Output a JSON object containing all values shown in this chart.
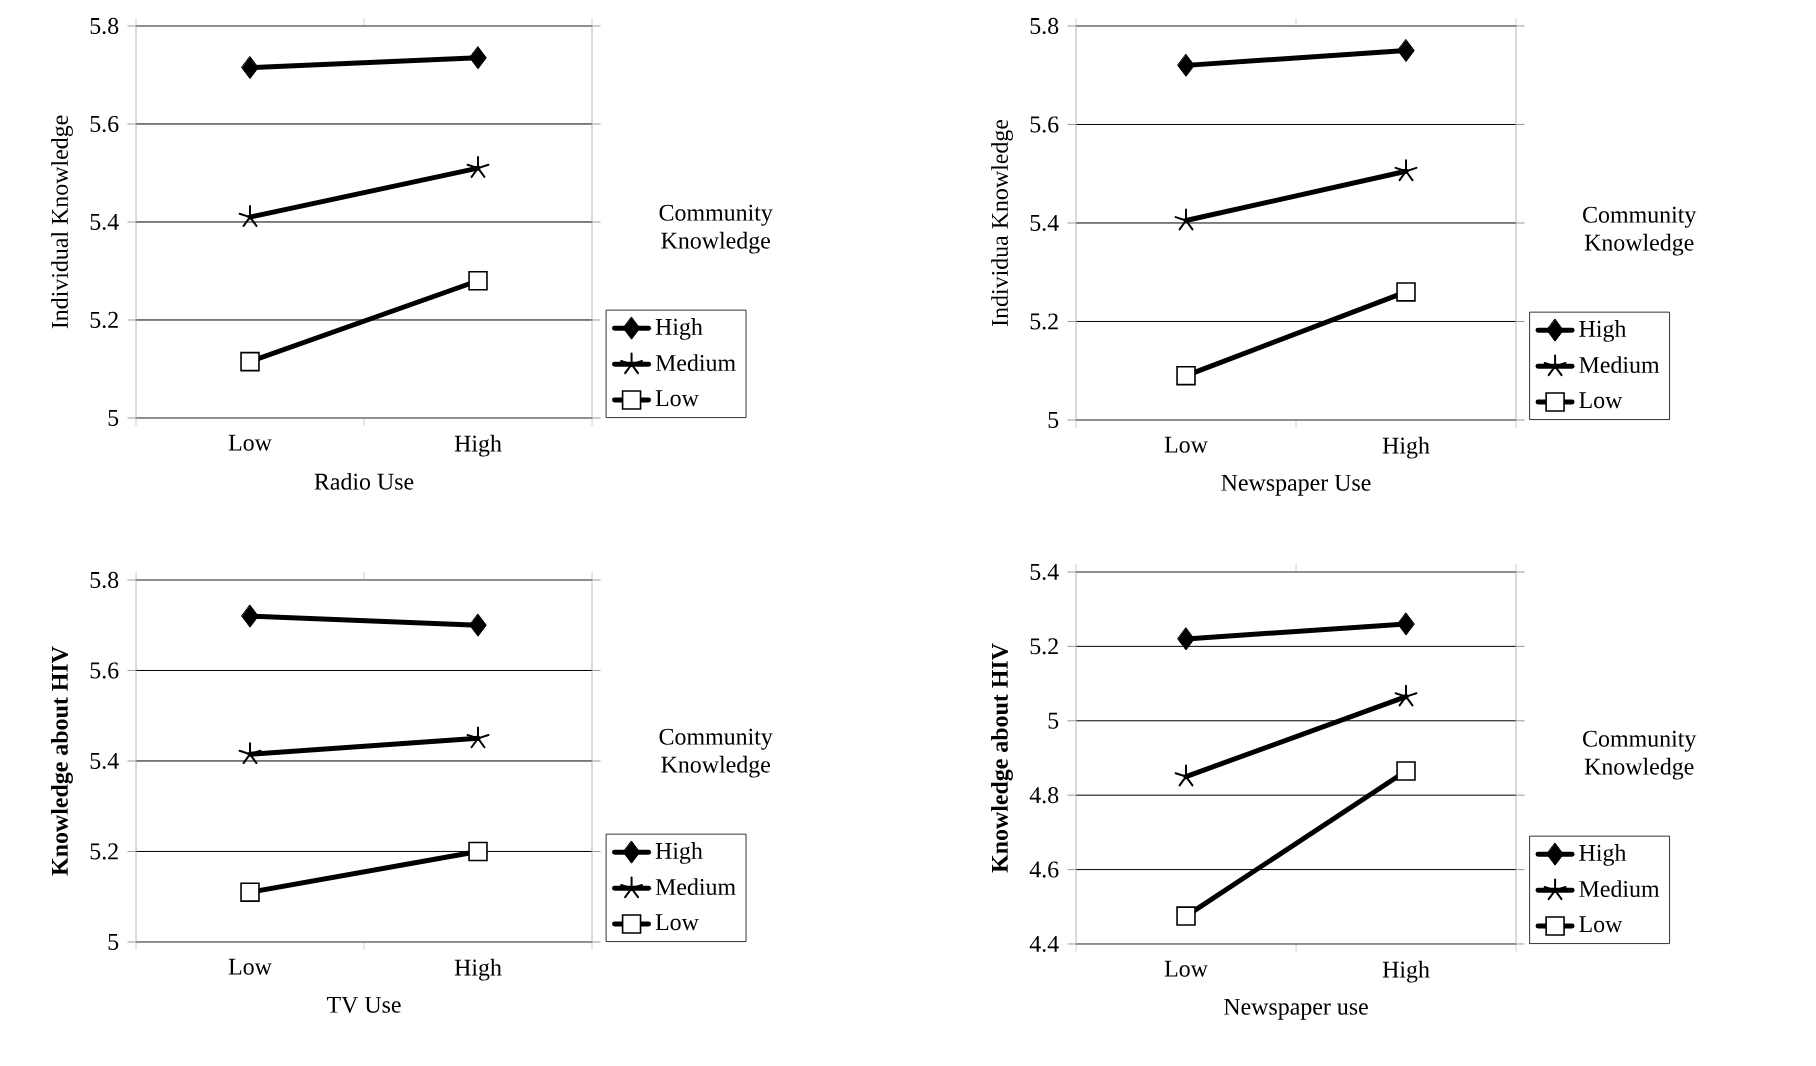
{
  "chart_data": [
    {
      "type": "line",
      "xlabel": "Radio Use",
      "ylabel": "Individual Knowledge",
      "legend_title": "Community Knowledge",
      "categories": [
        "Low",
        "High"
      ],
      "ylim": [
        5,
        5.8
      ],
      "yticks": [
        5,
        5.2,
        5.4,
        5.6,
        5.8
      ],
      "grid": "y",
      "legend": "right",
      "series": [
        {
          "name": "High",
          "color": "#000000",
          "marker": "diamond",
          "values": [
            5.715,
            5.735
          ]
        },
        {
          "name": "Medium",
          "color": "#000000",
          "marker": "cross",
          "values": [
            5.41,
            5.51
          ]
        },
        {
          "name": "Low",
          "color": "#000000",
          "marker": "square",
          "values": [
            5.115,
            5.28
          ]
        }
      ]
    },
    {
      "type": "line",
      "xlabel": "Newspaper Use",
      "ylabel": "Individua Knowledge",
      "legend_title": "Community Knowledge",
      "categories": [
        "Low",
        "High"
      ],
      "ylim": [
        5,
        5.8
      ],
      "yticks": [
        5,
        5.2,
        5.4,
        5.6,
        5.8
      ],
      "grid": "y",
      "legend": "right",
      "series": [
        {
          "name": "High",
          "color": "#000000",
          "marker": "diamond",
          "values": [
            5.72,
            5.75
          ]
        },
        {
          "name": "Medium",
          "color": "#000000",
          "marker": "cross",
          "values": [
            5.405,
            5.505
          ]
        },
        {
          "name": "Low",
          "color": "#000000",
          "marker": "square",
          "values": [
            5.09,
            5.26
          ]
        }
      ]
    },
    {
      "type": "line",
      "xlabel": "TV Use",
      "ylabel": "**Knowledge about HIV**",
      "legend_title": "Community Knowledge",
      "categories": [
        "Low",
        "High"
      ],
      "ylim": [
        5,
        5.8
      ],
      "yticks": [
        5,
        5.2,
        5.4,
        5.6,
        5.8
      ],
      "grid": "y",
      "legend": "right",
      "series": [
        {
          "name": "High",
          "color": "#000000",
          "marker": "diamond",
          "values": [
            5.72,
            5.7
          ]
        },
        {
          "name": "Medium",
          "color": "#000000",
          "marker": "cross",
          "values": [
            5.415,
            5.45
          ]
        },
        {
          "name": "Low",
          "color": "#000000",
          "marker": "square",
          "values": [
            5.11,
            5.2
          ]
        }
      ]
    },
    {
      "type": "line",
      "xlabel": "Newspaper use",
      "ylabel": "**Knowledge about HIV**",
      "legend_title": "Community Knowledge",
      "categories": [
        "Low",
        "High"
      ],
      "ylim": [
        4.4,
        5.4
      ],
      "yticks": [
        4.4,
        4.6,
        4.8,
        5,
        5.2,
        5.4
      ],
      "grid": "y",
      "legend": "right",
      "series": [
        {
          "name": "High",
          "color": "#000000",
          "marker": "diamond",
          "values": [
            5.22,
            5.26
          ]
        },
        {
          "name": "Medium",
          "color": "#000000",
          "marker": "cross",
          "values": [
            4.85,
            5.065
          ]
        },
        {
          "name": "Low",
          "color": "#000000",
          "marker": "square",
          "values": [
            4.475,
            4.865
          ]
        }
      ]
    }
  ]
}
